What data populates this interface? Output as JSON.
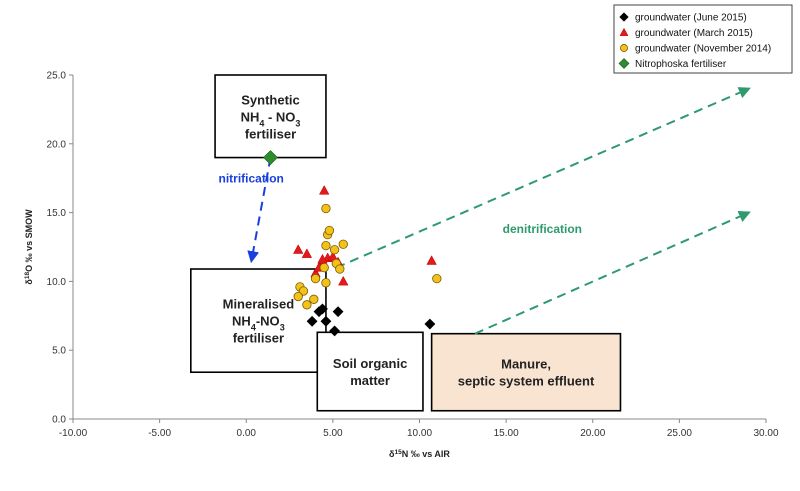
{
  "chart_data": {
    "type": "scatter",
    "xlabel_main": "δ",
    "xlabel_sup": "15",
    "xlabel_rest": "N ‰ vs AIR",
    "ylabel_main": "δ",
    "ylabel_sup": "18",
    "ylabel_rest": "O ‰ vs SMOW",
    "xlim": [
      -10,
      30
    ],
    "ylim": [
      0,
      25
    ],
    "xticks": [
      "-10.00",
      "-5.00",
      "0.00",
      "5.00",
      "10.00",
      "15.00",
      "20.00",
      "25.00",
      "30.00"
    ],
    "yticks": [
      "0.0",
      "5.0",
      "10.0",
      "15.0",
      "20.0",
      "25.0"
    ],
    "grid": false,
    "legend_position": "top-right",
    "series": [
      {
        "name": "groundwater (June 2015)",
        "marker": "diamond",
        "color": "#000000",
        "points": [
          [
            3.8,
            7.1
          ],
          [
            4.2,
            7.8
          ],
          [
            4.4,
            8.0
          ],
          [
            4.6,
            7.1
          ],
          [
            5.1,
            6.4
          ],
          [
            5.3,
            7.8
          ],
          [
            10.6,
            6.9
          ]
        ]
      },
      {
        "name": "groundwater (March 2015)",
        "marker": "triangle",
        "color": "#e31a1c",
        "points": [
          [
            3.0,
            12.3
          ],
          [
            3.5,
            12.0
          ],
          [
            4.0,
            10.6
          ],
          [
            4.3,
            11.2
          ],
          [
            4.5,
            16.6
          ],
          [
            4.7,
            11.7
          ],
          [
            5.0,
            11.8
          ],
          [
            5.3,
            11.4
          ],
          [
            5.6,
            10.0
          ],
          [
            10.7,
            11.5
          ],
          [
            4.2,
            11.0
          ],
          [
            4.4,
            11.6
          ]
        ]
      },
      {
        "name": "groundwater (November 2014)",
        "marker": "circle",
        "color": "#f2c21b",
        "points": [
          [
            4.6,
            15.3
          ],
          [
            4.7,
            13.4
          ],
          [
            4.8,
            13.7
          ],
          [
            4.6,
            12.6
          ],
          [
            5.1,
            12.3
          ],
          [
            5.6,
            12.7
          ],
          [
            5.2,
            11.3
          ],
          [
            5.4,
            10.9
          ],
          [
            4.5,
            11.0
          ],
          [
            4.0,
            10.2
          ],
          [
            4.6,
            9.9
          ],
          [
            3.1,
            9.6
          ],
          [
            3.3,
            9.3
          ],
          [
            3.0,
            8.9
          ],
          [
            3.5,
            8.3
          ],
          [
            3.9,
            8.7
          ],
          [
            11.0,
            10.2
          ]
        ]
      },
      {
        "name": "Nitrophoska fertiliser",
        "marker": "diamond",
        "color": "#2e8b2e",
        "points": [
          [
            1.4,
            19.0
          ]
        ]
      }
    ],
    "boxes": [
      {
        "id": "synthetic",
        "lines": [
          [
            "Synthetic",
            ""
          ],
          [
            "NH",
            "4",
            " - NO",
            "3"
          ],
          [
            "fertiliser",
            ""
          ]
        ],
        "x0": -1.8,
        "x1": 4.6,
        "y0": 19.0,
        "y1": 25.0,
        "fill": "#ffffff"
      },
      {
        "id": "mineralised",
        "lines": [
          [
            "Mineralised",
            ""
          ],
          [
            "NH",
            "4",
            "-NO",
            "3"
          ],
          [
            "fertiliser",
            ""
          ]
        ],
        "x0": -3.2,
        "x1": 4.6,
        "y0": 3.4,
        "y1": 10.9,
        "fill": "#ffffff"
      },
      {
        "id": "soil",
        "lines": [
          [
            "Soil organic",
            ""
          ],
          [
            "matter",
            ""
          ]
        ],
        "x0": 4.1,
        "x1": 10.2,
        "y0": 0.6,
        "y1": 6.3,
        "fill": "#ffffff"
      },
      {
        "id": "manure",
        "lines": [
          [
            "Manure,",
            ""
          ],
          [
            "septic system effluent",
            ""
          ]
        ],
        "x0": 10.7,
        "x1": 21.6,
        "y0": 0.6,
        "y1": 6.2,
        "fill": "#f8e4d0"
      }
    ],
    "annotations": [
      {
        "text": "nitrification",
        "color": "#1a3fe0",
        "x": -1.6,
        "y": 17.2
      },
      {
        "text": "denitrification",
        "color": "#2e9a6e",
        "x": 14.8,
        "y": 13.5
      }
    ],
    "arrows": [
      {
        "x1": 1.4,
        "y1": 19.0,
        "x2": 0.3,
        "y2": 11.5,
        "color": "#1a3fe0"
      },
      {
        "x1": 5.2,
        "y1": 11.0,
        "x2": 29.0,
        "y2": 24.0,
        "color": "#2e9a6e"
      },
      {
        "x1": 13.2,
        "y1": 6.2,
        "x2": 29.0,
        "y2": 15.0,
        "color": "#2e9a6e"
      }
    ]
  }
}
